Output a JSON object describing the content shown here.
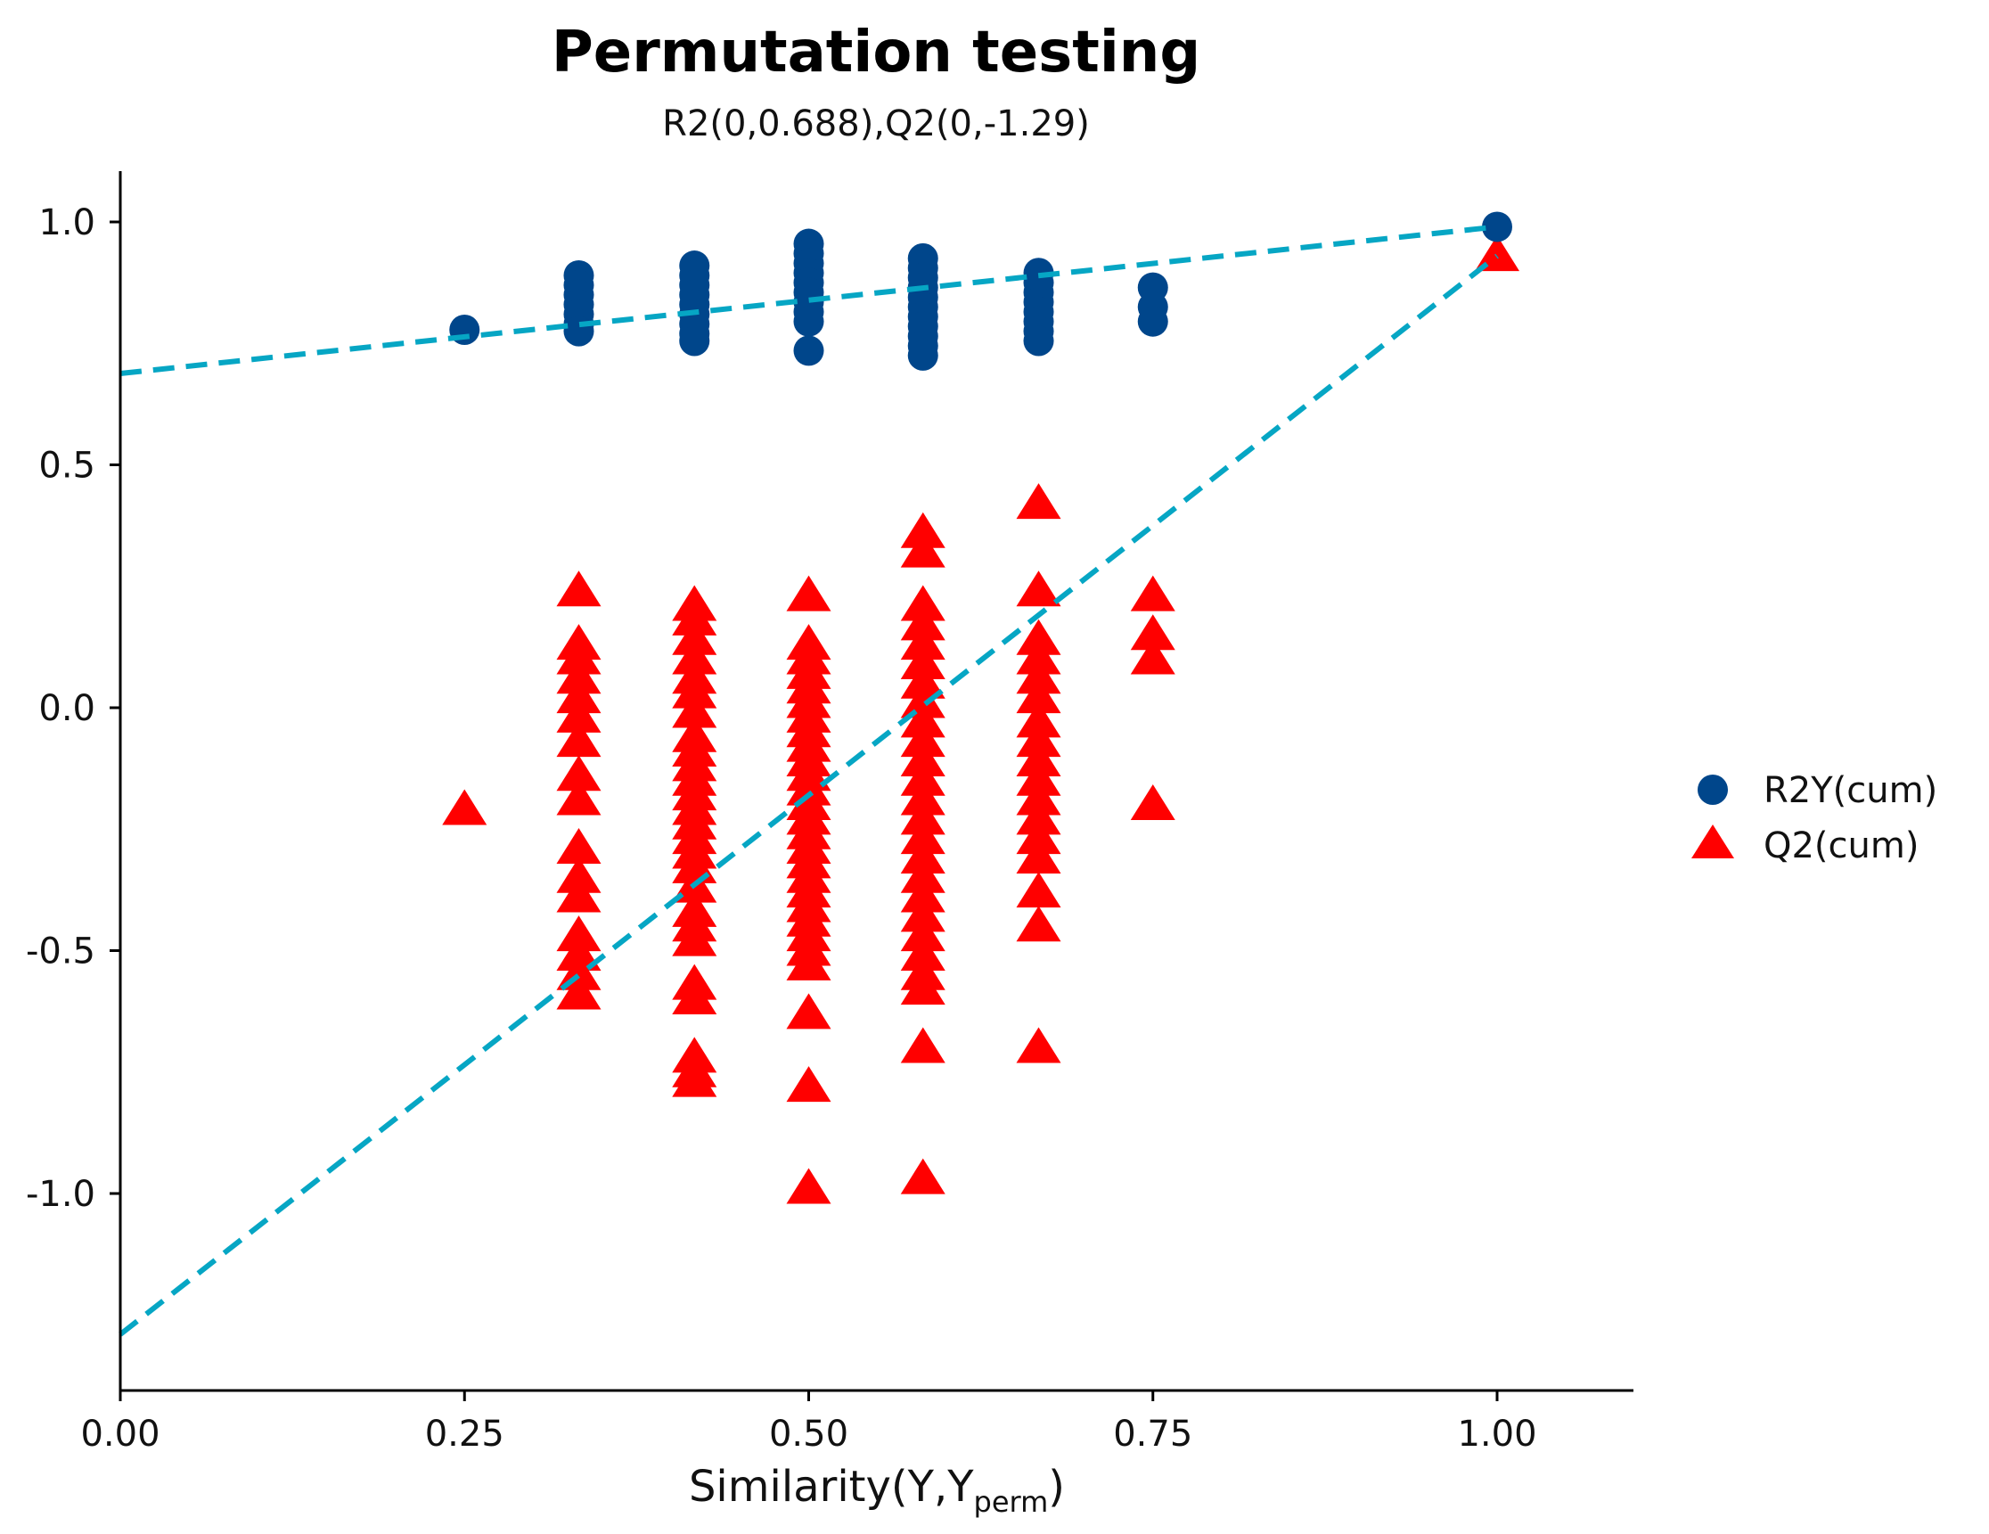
{
  "chart_data": {
    "type": "scatter",
    "title": "Permutation testing",
    "subtitle": "R2(0,0.688),Q2(0,-1.29)",
    "xlabel_main": "Similarity(Y,Y",
    "xlabel_sub": "perm",
    "xlabel_close": ")",
    "ylabel": "",
    "xlim": [
      0.0,
      1.1
    ],
    "ylim": [
      -1.4,
      1.1
    ],
    "xticks": [
      0.0,
      0.25,
      0.5,
      0.75,
      1.0
    ],
    "xtick_labels": [
      "0.00",
      "0.25",
      "0.50",
      "0.75",
      "1.00"
    ],
    "yticks": [
      1.0,
      0.5,
      0.0,
      -0.5,
      -1.0
    ],
    "ytick_labels": [
      "1.0",
      "0.5",
      "0.0",
      "-0.5",
      "-1.0"
    ],
    "grid": false,
    "legend_position": "right",
    "colors": {
      "r2": "#00468b",
      "q2": "#ff0000",
      "line": "#06a6c4"
    },
    "series": [
      {
        "name": "R2Y(cum)",
        "marker": "circle",
        "points": [
          [
            0.25,
            0.778
          ],
          [
            0.333,
            0.89
          ],
          [
            0.333,
            0.87
          ],
          [
            0.333,
            0.85
          ],
          [
            0.333,
            0.83
          ],
          [
            0.333,
            0.81
          ],
          [
            0.333,
            0.79
          ],
          [
            0.333,
            0.775
          ],
          [
            0.417,
            0.91
          ],
          [
            0.417,
            0.89
          ],
          [
            0.417,
            0.87
          ],
          [
            0.417,
            0.85
          ],
          [
            0.417,
            0.83
          ],
          [
            0.417,
            0.81
          ],
          [
            0.417,
            0.79
          ],
          [
            0.417,
            0.77
          ],
          [
            0.417,
            0.755
          ],
          [
            0.5,
            0.955
          ],
          [
            0.5,
            0.935
          ],
          [
            0.5,
            0.915
          ],
          [
            0.5,
            0.895
          ],
          [
            0.5,
            0.875
          ],
          [
            0.5,
            0.855
          ],
          [
            0.5,
            0.835
          ],
          [
            0.5,
            0.815
          ],
          [
            0.5,
            0.795
          ],
          [
            0.5,
            0.735
          ],
          [
            0.583,
            0.925
          ],
          [
            0.583,
            0.905
          ],
          [
            0.583,
            0.885
          ],
          [
            0.583,
            0.865
          ],
          [
            0.583,
            0.845
          ],
          [
            0.583,
            0.825
          ],
          [
            0.583,
            0.805
          ],
          [
            0.583,
            0.785
          ],
          [
            0.583,
            0.765
          ],
          [
            0.583,
            0.745
          ],
          [
            0.583,
            0.725
          ],
          [
            0.667,
            0.895
          ],
          [
            0.667,
            0.875
          ],
          [
            0.667,
            0.855
          ],
          [
            0.667,
            0.835
          ],
          [
            0.667,
            0.815
          ],
          [
            0.667,
            0.795
          ],
          [
            0.667,
            0.775
          ],
          [
            0.667,
            0.755
          ],
          [
            0.75,
            0.865
          ],
          [
            0.75,
            0.825
          ],
          [
            0.75,
            0.795
          ],
          [
            1.0,
            0.99
          ]
        ]
      },
      {
        "name": "Q2(cum)",
        "marker": "triangle",
        "points": [
          [
            0.25,
            -0.21
          ],
          [
            0.333,
            0.24
          ],
          [
            0.333,
            0.13
          ],
          [
            0.333,
            0.1
          ],
          [
            0.333,
            0.06
          ],
          [
            0.333,
            0.02
          ],
          [
            0.333,
            -0.02
          ],
          [
            0.333,
            -0.07
          ],
          [
            0.333,
            -0.14
          ],
          [
            0.333,
            -0.19
          ],
          [
            0.333,
            -0.29
          ],
          [
            0.333,
            -0.35
          ],
          [
            0.333,
            -0.39
          ],
          [
            0.333,
            -0.47
          ],
          [
            0.333,
            -0.51
          ],
          [
            0.333,
            -0.55
          ],
          [
            0.333,
            -0.59
          ],
          [
            0.417,
            0.21
          ],
          [
            0.417,
            0.18
          ],
          [
            0.417,
            0.14
          ],
          [
            0.417,
            0.1
          ],
          [
            0.417,
            0.06
          ],
          [
            0.417,
            0.03
          ],
          [
            0.417,
            -0.01
          ],
          [
            0.417,
            -0.06
          ],
          [
            0.417,
            -0.09
          ],
          [
            0.417,
            -0.12
          ],
          [
            0.417,
            -0.15
          ],
          [
            0.417,
            -0.18
          ],
          [
            0.417,
            -0.21
          ],
          [
            0.417,
            -0.24
          ],
          [
            0.417,
            -0.27
          ],
          [
            0.417,
            -0.3
          ],
          [
            0.417,
            -0.33
          ],
          [
            0.417,
            -0.37
          ],
          [
            0.417,
            -0.42
          ],
          [
            0.417,
            -0.45
          ],
          [
            0.417,
            -0.48
          ],
          [
            0.417,
            -0.57
          ],
          [
            0.417,
            -0.6
          ],
          [
            0.417,
            -0.72
          ],
          [
            0.417,
            -0.75
          ],
          [
            0.417,
            -0.77
          ],
          [
            0.5,
            0.23
          ],
          [
            0.5,
            0.13
          ],
          [
            0.5,
            0.1
          ],
          [
            0.5,
            0.07
          ],
          [
            0.5,
            0.04
          ],
          [
            0.5,
            0.01
          ],
          [
            0.5,
            -0.02
          ],
          [
            0.5,
            -0.05
          ],
          [
            0.5,
            -0.08
          ],
          [
            0.5,
            -0.11
          ],
          [
            0.5,
            -0.14
          ],
          [
            0.5,
            -0.17
          ],
          [
            0.5,
            -0.2
          ],
          [
            0.5,
            -0.23
          ],
          [
            0.5,
            -0.26
          ],
          [
            0.5,
            -0.29
          ],
          [
            0.5,
            -0.32
          ],
          [
            0.5,
            -0.35
          ],
          [
            0.5,
            -0.38
          ],
          [
            0.5,
            -0.41
          ],
          [
            0.5,
            -0.44
          ],
          [
            0.5,
            -0.47
          ],
          [
            0.5,
            -0.5
          ],
          [
            0.5,
            -0.53
          ],
          [
            0.5,
            -0.63
          ],
          [
            0.5,
            -0.78
          ],
          [
            0.5,
            -0.99
          ],
          [
            0.583,
            0.36
          ],
          [
            0.583,
            0.32
          ],
          [
            0.583,
            0.21
          ],
          [
            0.583,
            0.17
          ],
          [
            0.583,
            0.13
          ],
          [
            0.583,
            0.09
          ],
          [
            0.583,
            0.05
          ],
          [
            0.583,
            0.01
          ],
          [
            0.583,
            -0.03
          ],
          [
            0.583,
            -0.07
          ],
          [
            0.583,
            -0.11
          ],
          [
            0.583,
            -0.15
          ],
          [
            0.583,
            -0.19
          ],
          [
            0.583,
            -0.23
          ],
          [
            0.583,
            -0.27
          ],
          [
            0.583,
            -0.31
          ],
          [
            0.583,
            -0.35
          ],
          [
            0.583,
            -0.39
          ],
          [
            0.583,
            -0.43
          ],
          [
            0.583,
            -0.47
          ],
          [
            0.583,
            -0.51
          ],
          [
            0.583,
            -0.55
          ],
          [
            0.583,
            -0.58
          ],
          [
            0.583,
            -0.7
          ],
          [
            0.583,
            -0.97
          ],
          [
            0.667,
            0.42
          ],
          [
            0.667,
            0.24
          ],
          [
            0.667,
            0.14
          ],
          [
            0.667,
            0.1
          ],
          [
            0.667,
            0.06
          ],
          [
            0.667,
            0.02
          ],
          [
            0.667,
            -0.03
          ],
          [
            0.667,
            -0.07
          ],
          [
            0.667,
            -0.11
          ],
          [
            0.667,
            -0.15
          ],
          [
            0.667,
            -0.19
          ],
          [
            0.667,
            -0.23
          ],
          [
            0.667,
            -0.27
          ],
          [
            0.667,
            -0.31
          ],
          [
            0.667,
            -0.38
          ],
          [
            0.667,
            -0.45
          ],
          [
            0.667,
            -0.7
          ],
          [
            0.75,
            0.23
          ],
          [
            0.75,
            0.15
          ],
          [
            0.75,
            0.1
          ],
          [
            0.75,
            -0.2
          ],
          [
            1.0,
            0.93
          ]
        ]
      }
    ],
    "regression_lines": [
      {
        "name": "R2 regression",
        "from": [
          0.0,
          0.688
        ],
        "to": [
          1.0,
          0.99
        ]
      },
      {
        "name": "Q2 regression",
        "from": [
          0.0,
          -1.29
        ],
        "to": [
          1.0,
          0.93
        ]
      }
    ]
  }
}
